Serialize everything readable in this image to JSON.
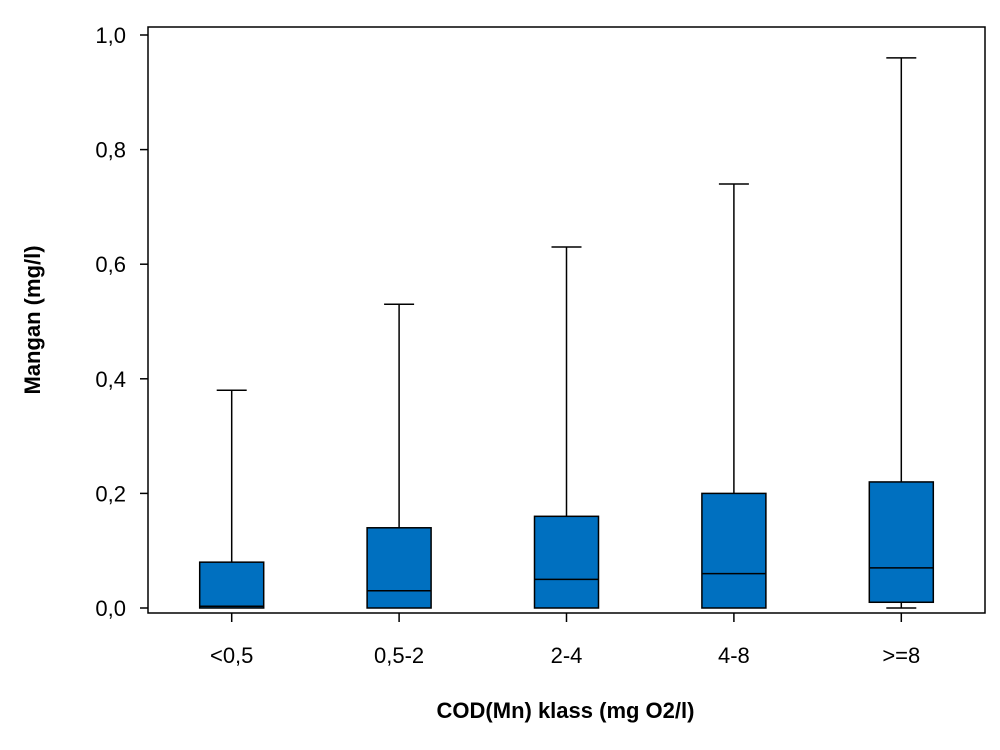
{
  "chart_data": {
    "type": "boxplot",
    "xlabel": "COD(Mn) klass (mg O2/l)",
    "ylabel": "Mangan (mg/l)",
    "ylim": [
      0,
      1.0
    ],
    "yticks": [
      0.0,
      0.2,
      0.4,
      0.6,
      0.8,
      1.0
    ],
    "ytick_labels": [
      "0,0",
      "0,2",
      "0,4",
      "0,6",
      "0,8",
      "1,0"
    ],
    "categories": [
      "<0,5",
      "0,5-2",
      "2-4",
      "4-8",
      ">=8"
    ],
    "boxes": [
      {
        "category": "<0,5",
        "whisker_low": 0.0,
        "q1": 0.0,
        "median": 0.003,
        "q3": 0.08,
        "whisker_high": 0.38
      },
      {
        "category": "0,5-2",
        "whisker_low": 0.0,
        "q1": 0.0,
        "median": 0.03,
        "q3": 0.14,
        "whisker_high": 0.53
      },
      {
        "category": "2-4",
        "whisker_low": 0.0,
        "q1": 0.0,
        "median": 0.05,
        "q3": 0.16,
        "whisker_high": 0.63
      },
      {
        "category": "4-8",
        "whisker_low": 0.0,
        "q1": 0.0,
        "median": 0.06,
        "q3": 0.2,
        "whisker_high": 0.74
      },
      {
        "category": ">=8",
        "whisker_low": 0.0,
        "q1": 0.01,
        "median": 0.07,
        "q3": 0.22,
        "whisker_high": 0.96
      }
    ],
    "box_color": "#0070C0",
    "grid": false,
    "legend": "none"
  }
}
